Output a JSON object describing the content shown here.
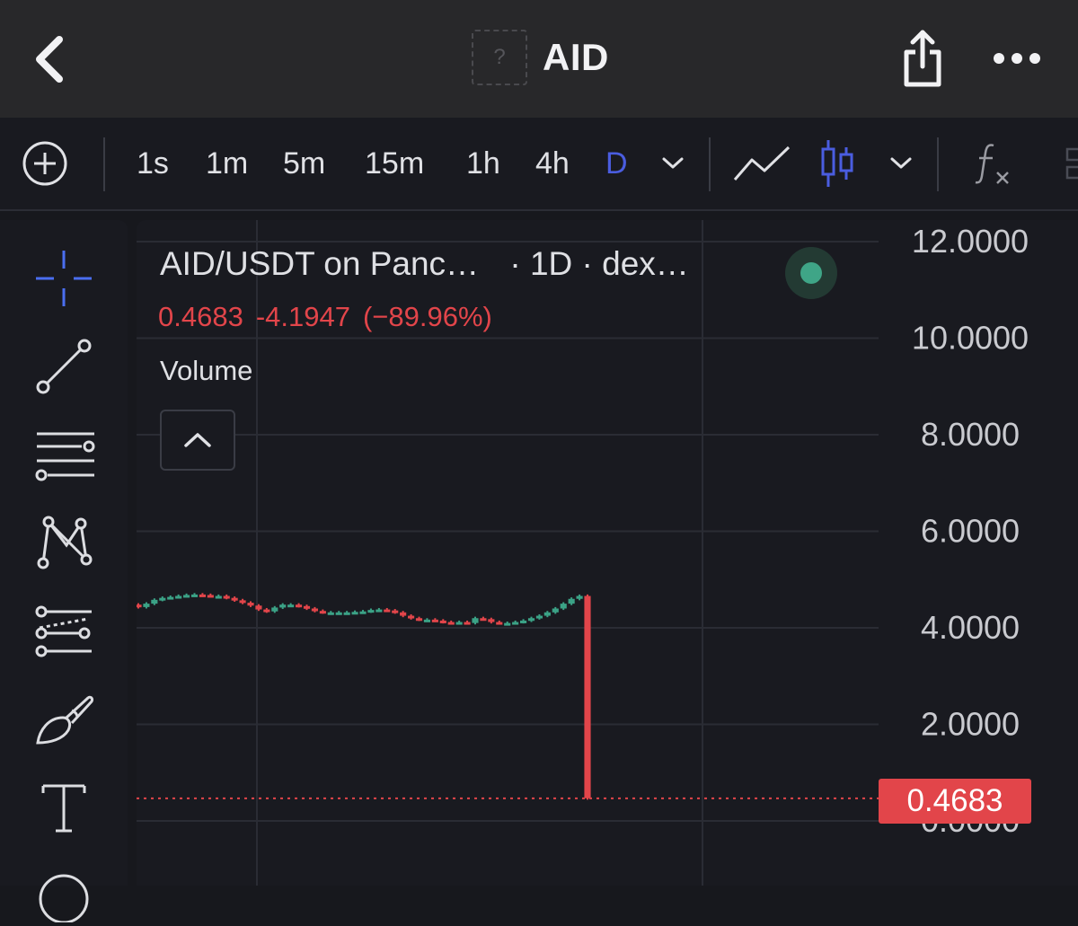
{
  "header": {
    "title": "AID",
    "logo_placeholder": "?",
    "icons": [
      "back-chevron-icon",
      "share-icon",
      "more-icon"
    ]
  },
  "toolbar": {
    "add_indicator_icon": "plus-circle-icon",
    "intervals": [
      "1s",
      "1m",
      "5m",
      "15m",
      "1h",
      "4h",
      "D"
    ],
    "active_interval": "D",
    "chart_types": [
      "line-chart-icon",
      "candlestick-icon"
    ],
    "active_chart_type": "candlestick",
    "functions_icon": "fx-icon",
    "colors": {
      "accent": "#4a5de0",
      "text": "#e0e1e5"
    }
  },
  "sidebar": {
    "tools": [
      "crosshair-icon",
      "trend-line-icon",
      "horizontal-lines-icon",
      "pattern-icon",
      "fib-channel-icon",
      "brush-icon",
      "text-tool-icon",
      "circle-tool-icon"
    ],
    "active_tool": "crosshair-icon"
  },
  "legend": {
    "symbol": "AID/USDT on Panc…",
    "interval_suffix": " · 1D · dex…",
    "last_price": "0.4683",
    "change": "-4.1947",
    "change_pct": "(−89.96%)",
    "volume_label": "Volume",
    "status_color": "#3fa587"
  },
  "price_tag": "0.4683",
  "chart_data": {
    "type": "candlestick",
    "yaxis_ticks": [
      "12.0000",
      "10.0000",
      "8.0000",
      "6.0000",
      "4.0000",
      "2.0000",
      "0.0000"
    ],
    "ylim": [
      0,
      12
    ],
    "up_color": "#3ba286",
    "down_color": "#e2454a",
    "last_price": 0.4683,
    "closes": [
      4.43,
      4.5,
      4.58,
      4.62,
      4.64,
      4.66,
      4.68,
      4.69,
      4.68,
      4.66,
      4.66,
      4.62,
      4.57,
      4.52,
      4.46,
      4.38,
      4.34,
      4.42,
      4.48,
      4.48,
      4.45,
      4.4,
      4.35,
      4.32,
      4.32,
      4.32,
      4.32,
      4.33,
      4.34,
      4.37,
      4.38,
      4.36,
      4.32,
      4.25,
      4.2,
      4.17,
      4.17,
      4.15,
      4.12,
      4.1,
      4.12,
      4.1,
      4.2,
      4.18,
      4.12,
      4.1,
      4.1,
      4.12,
      4.15,
      4.2,
      4.25,
      4.32,
      4.4,
      4.5,
      4.6,
      4.66,
      0.47
    ]
  }
}
